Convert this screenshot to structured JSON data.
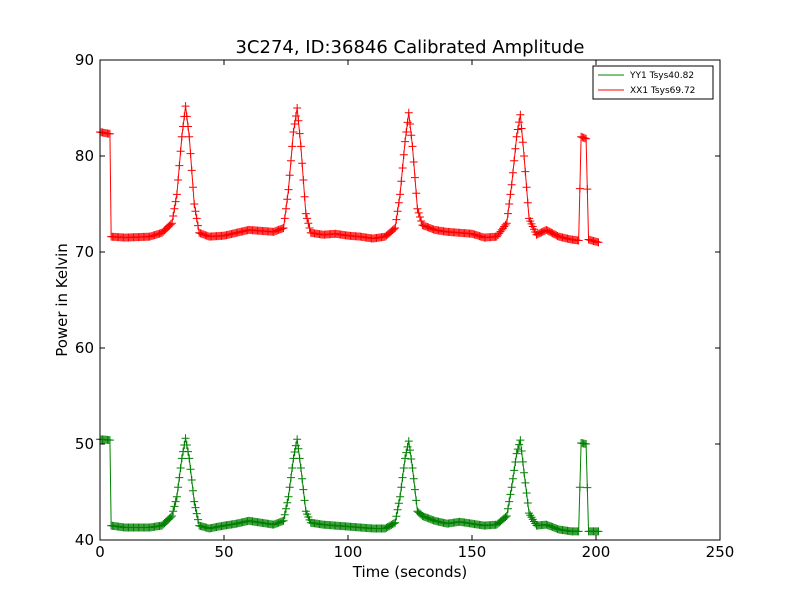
{
  "chart_data": {
    "type": "line",
    "title": "3C274, ID:36846 Calibrated Amplitude",
    "xlabel": "Time (seconds)",
    "ylabel": "Power in Kelvin",
    "xlim": [
      0,
      250
    ],
    "ylim": [
      40,
      90
    ],
    "x_ticks": [
      0,
      50,
      100,
      150,
      200,
      250
    ],
    "y_ticks": [
      40,
      50,
      60,
      70,
      80,
      90
    ],
    "grid": false,
    "legend_position": "top-right",
    "marker": "+",
    "series": [
      {
        "name": "YY1 Tsys40.82",
        "color": "#008000",
        "points": [
          [
            0,
            50.5
          ],
          [
            4,
            50.4
          ],
          [
            4.5,
            41.5
          ],
          [
            10,
            41.3
          ],
          [
            20,
            41.3
          ],
          [
            25,
            41.5
          ],
          [
            29,
            42.5
          ],
          [
            31,
            44.5
          ],
          [
            33,
            48.5
          ],
          [
            34.5,
            50.6
          ],
          [
            36,
            48.5
          ],
          [
            38,
            44.0
          ],
          [
            40,
            41.5
          ],
          [
            44,
            41.2
          ],
          [
            50,
            41.5
          ],
          [
            55,
            41.7
          ],
          [
            60,
            42.0
          ],
          [
            65,
            41.8
          ],
          [
            70,
            41.6
          ],
          [
            74,
            42.0
          ],
          [
            76,
            44.5
          ],
          [
            78,
            48.5
          ],
          [
            79.5,
            50.5
          ],
          [
            81,
            47.5
          ],
          [
            83,
            43.0
          ],
          [
            85,
            41.8
          ],
          [
            90,
            41.6
          ],
          [
            100,
            41.4
          ],
          [
            110,
            41.2
          ],
          [
            115,
            41.2
          ],
          [
            119,
            41.8
          ],
          [
            121,
            44.5
          ],
          [
            123,
            48.5
          ],
          [
            124.5,
            50.3
          ],
          [
            126,
            47.5
          ],
          [
            128,
            43.0
          ],
          [
            130,
            42.5
          ],
          [
            135,
            42.0
          ],
          [
            140,
            41.7
          ],
          [
            145,
            41.9
          ],
          [
            150,
            41.7
          ],
          [
            155,
            41.5
          ],
          [
            160,
            41.6
          ],
          [
            164,
            42.5
          ],
          [
            166,
            45.5
          ],
          [
            168,
            49.0
          ],
          [
            169.5,
            50.4
          ],
          [
            171,
            47.0
          ],
          [
            173,
            42.8
          ],
          [
            176,
            41.5
          ],
          [
            180,
            41.6
          ],
          [
            185,
            41.1
          ],
          [
            190,
            40.9
          ],
          [
            193,
            40.9
          ],
          [
            194,
            50.1
          ],
          [
            196,
            50.0
          ],
          [
            197,
            40.9
          ],
          [
            201,
            40.9
          ]
        ]
      },
      {
        "name": "XX1 Tsys69.72",
        "color": "#ff0000",
        "points": [
          [
            0,
            82.5
          ],
          [
            4,
            82.3
          ],
          [
            4.5,
            71.6
          ],
          [
            10,
            71.5
          ],
          [
            20,
            71.6
          ],
          [
            25,
            72.0
          ],
          [
            29,
            73.0
          ],
          [
            31,
            76.0
          ],
          [
            33,
            82.0
          ],
          [
            34.5,
            85.2
          ],
          [
            36,
            82.0
          ],
          [
            38,
            75.0
          ],
          [
            40,
            72.0
          ],
          [
            44,
            71.6
          ],
          [
            50,
            71.7
          ],
          [
            55,
            72.0
          ],
          [
            60,
            72.3
          ],
          [
            65,
            72.2
          ],
          [
            70,
            72.1
          ],
          [
            74,
            72.5
          ],
          [
            76,
            76.5
          ],
          [
            78,
            82.5
          ],
          [
            79.5,
            85.0
          ],
          [
            81,
            81.0
          ],
          [
            83,
            74.0
          ],
          [
            85,
            72.0
          ],
          [
            90,
            71.8
          ],
          [
            95,
            71.9
          ],
          [
            100,
            71.7
          ],
          [
            105,
            71.6
          ],
          [
            110,
            71.4
          ],
          [
            115,
            71.6
          ],
          [
            119,
            72.5
          ],
          [
            121,
            76.0
          ],
          [
            123,
            81.5
          ],
          [
            124.5,
            84.5
          ],
          [
            126,
            81.0
          ],
          [
            128,
            74.5
          ],
          [
            130,
            72.8
          ],
          [
            135,
            72.3
          ],
          [
            140,
            72.1
          ],
          [
            145,
            72.0
          ],
          [
            150,
            71.9
          ],
          [
            155,
            71.5
          ],
          [
            160,
            71.6
          ],
          [
            164,
            73.0
          ],
          [
            166,
            77.0
          ],
          [
            168,
            82.0
          ],
          [
            169.5,
            84.3
          ],
          [
            171,
            80.0
          ],
          [
            173,
            73.5
          ],
          [
            176,
            71.8
          ],
          [
            180,
            72.3
          ],
          [
            185,
            71.6
          ],
          [
            190,
            71.3
          ],
          [
            193,
            71.2
          ],
          [
            194,
            82.0
          ],
          [
            196,
            81.8
          ],
          [
            197,
            71.3
          ],
          [
            201,
            71.0
          ]
        ]
      }
    ]
  }
}
